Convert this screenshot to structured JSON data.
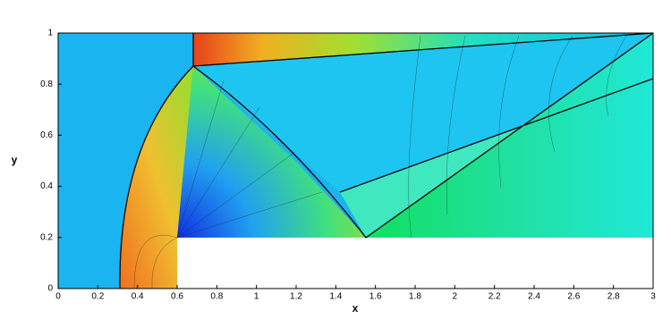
{
  "chart_data": {
    "type": "contour",
    "x_label": "x",
    "y_label": "y",
    "xlim": [
      0,
      3
    ],
    "ylim": [
      0,
      1
    ],
    "xticks": [
      0,
      0.2,
      0.4,
      0.6,
      0.8,
      1,
      1.2,
      1.4,
      1.6,
      1.8,
      2,
      2.2,
      2.4,
      2.6,
      2.8,
      3
    ],
    "yticks": [
      0,
      0.2,
      0.4,
      0.6,
      0.8,
      1
    ]
  }
}
